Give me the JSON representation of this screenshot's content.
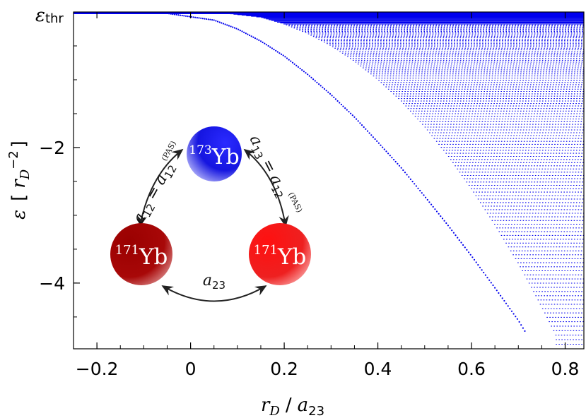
{
  "chart_data": {
    "type": "scatter",
    "title": "",
    "xlabel": {
      "r": "r",
      "D": "D",
      "slash": "/",
      "a": "a",
      "sub": "23"
    },
    "ylabel": {
      "sym": "ε",
      "open": "[",
      "r": "r",
      "D": "D",
      "pow": "−2",
      "close": "]"
    },
    "xlim": [
      -0.25,
      0.84
    ],
    "ylim": [
      -4.97,
      0.0
    ],
    "x_ticks": [
      {
        "value": -0.2,
        "label": "−0.2"
      },
      {
        "value": 0.0,
        "label": "0"
      },
      {
        "value": 0.2,
        "label": "0.2"
      },
      {
        "value": 0.4,
        "label": "0.4"
      },
      {
        "value": 0.6,
        "label": "0.6"
      },
      {
        "value": 0.8,
        "label": "0.8"
      }
    ],
    "y_ticks": [
      {
        "value": -2,
        "label": "−2"
      },
      {
        "value": -4,
        "label": "−4"
      }
    ],
    "threshold_label": {
      "sym": "ε",
      "sub": "thr"
    },
    "series": [
      {
        "role": "lowest trimer branch",
        "color": "#0000ee",
        "points": [
          [
            -0.25,
            0.0
          ],
          [
            -0.05,
            -0.02
          ],
          [
            0.05,
            -0.12
          ],
          [
            0.1,
            -0.25
          ],
          [
            0.15,
            -0.43
          ],
          [
            0.2,
            -0.65
          ],
          [
            0.25,
            -0.92
          ],
          [
            0.3,
            -1.22
          ],
          [
            0.35,
            -1.55
          ],
          [
            0.4,
            -1.92
          ],
          [
            0.45,
            -2.3
          ],
          [
            0.5,
            -2.72
          ],
          [
            0.55,
            -3.15
          ],
          [
            0.6,
            -3.6
          ],
          [
            0.65,
            -4.07
          ],
          [
            0.7,
            -4.55
          ],
          [
            0.715,
            -4.72
          ]
        ]
      },
      {
        "role": "excited-state envelope",
        "color": "#0000ee",
        "points": [
          [
            0.05,
            0.0
          ],
          [
            0.15,
            -0.08
          ],
          [
            0.2,
            -0.18
          ],
          [
            0.25,
            -0.32
          ],
          [
            0.3,
            -0.5
          ],
          [
            0.35,
            -0.73
          ],
          [
            0.4,
            -1.0
          ],
          [
            0.45,
            -1.32
          ],
          [
            0.5,
            -1.7
          ],
          [
            0.55,
            -2.13
          ],
          [
            0.6,
            -2.62
          ],
          [
            0.65,
            -3.15
          ],
          [
            0.7,
            -3.72
          ],
          [
            0.73,
            -4.1
          ],
          [
            0.76,
            -4.5
          ],
          [
            0.78,
            -4.78
          ]
        ]
      }
    ]
  },
  "inset": {
    "atoms": [
      {
        "id": "yb173",
        "mass": "173",
        "symbol": "Yb",
        "color": "#2020e8"
      },
      {
        "id": "yb171-left",
        "mass": "171",
        "symbol": "Yb",
        "color": "#a00000"
      },
      {
        "id": "yb171-right",
        "mass": "171",
        "symbol": "Yb",
        "color": "#ee1010"
      }
    ],
    "left_label": {
      "a1": "a",
      "s1": "12",
      "eq": "=",
      "a2": "a",
      "s2": "12",
      "sup": "(PAS)"
    },
    "right_label": {
      "a1": "a",
      "s1": "13",
      "eq": "=",
      "a2": "a",
      "s2": "12",
      "sup": "(PAS)"
    },
    "bottom_label": {
      "a": "a",
      "sub": "23"
    }
  }
}
